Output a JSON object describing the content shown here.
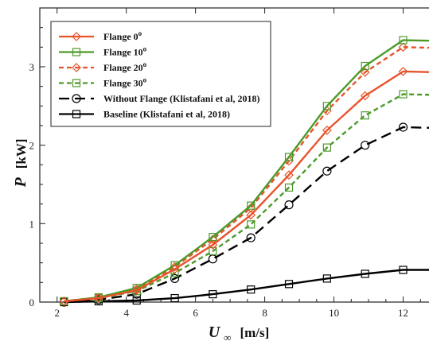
{
  "chart_data": {
    "type": "line",
    "xlim": [
      1.5,
      13
    ],
    "ylim": [
      0,
      3.75
    ],
    "x_ticks": [
      2,
      4,
      6,
      8,
      10,
      12
    ],
    "y_ticks": [
      0,
      1,
      2,
      3
    ],
    "ylabel_main": "P",
    "ylabel_unit": "[kW]",
    "xlabel_main": "U",
    "xlabel_sub": "∞",
    "xlabel_unit": "[m/s]",
    "grid": false,
    "legend_position": "top-left",
    "series": [
      {
        "name": "Flange 0",
        "name_sup": "o",
        "color": "#e8532b",
        "dash": "solid",
        "marker": "diamond",
        "x": [
          2.2,
          3.2,
          4.3,
          5.4,
          6.5,
          7.6,
          8.7,
          9.8,
          10.9,
          12.0,
          13.0
        ],
        "y": [
          0.01,
          0.05,
          0.15,
          0.42,
          0.73,
          1.11,
          1.62,
          2.19,
          2.63,
          2.94,
          2.93
        ]
      },
      {
        "name": "Flange 10",
        "name_sup": "o",
        "color": "#4d9a2a",
        "dash": "solid",
        "marker": "square",
        "x": [
          2.2,
          3.2,
          4.3,
          5.4,
          6.5,
          7.6,
          8.7,
          9.8,
          10.9,
          12.0,
          13.0
        ],
        "y": [
          0.01,
          0.06,
          0.18,
          0.47,
          0.83,
          1.23,
          1.85,
          2.5,
          3.01,
          3.34,
          3.33
        ]
      },
      {
        "name": "Flange 20",
        "name_sup": "o",
        "color": "#e8532b",
        "dash": "dashed",
        "marker": "diamond",
        "x": [
          2.2,
          3.2,
          4.3,
          5.4,
          6.5,
          7.6,
          8.7,
          9.8,
          10.9,
          12.0,
          13.0
        ],
        "y": [
          0.01,
          0.06,
          0.17,
          0.45,
          0.8,
          1.2,
          1.8,
          2.44,
          2.93,
          3.25,
          3.24
        ]
      },
      {
        "name": "Flange 30",
        "name_sup": "o",
        "color": "#4d9a2a",
        "dash": "dashed",
        "marker": "square",
        "x": [
          2.2,
          3.2,
          4.3,
          5.4,
          6.5,
          7.6,
          8.7,
          9.8,
          10.9,
          12.0,
          13.0
        ],
        "y": [
          0.01,
          0.05,
          0.14,
          0.37,
          0.65,
          0.99,
          1.46,
          1.97,
          2.38,
          2.65,
          2.64
        ]
      },
      {
        "name": "Without Flange (Klistafani et al, 2018)",
        "name_sup": "",
        "color": "#000000",
        "dash": "longdash",
        "marker": "circle",
        "x": [
          2.2,
          3.2,
          4.3,
          5.4,
          6.5,
          7.6,
          8.7,
          9.8,
          10.9,
          12.0,
          13.0
        ],
        "y": [
          0.0,
          0.03,
          0.1,
          0.3,
          0.55,
          0.82,
          1.24,
          1.67,
          2.0,
          2.23,
          2.22
        ]
      },
      {
        "name": "Baseline (Klistafani et al, 2018)",
        "name_sup": "",
        "color": "#000000",
        "dash": "solid",
        "marker": "square",
        "x": [
          2.2,
          3.2,
          4.3,
          5.4,
          6.5,
          7.6,
          8.7,
          9.8,
          10.9,
          12.0,
          13.0
        ],
        "y": [
          0.0,
          0.01,
          0.02,
          0.05,
          0.1,
          0.16,
          0.23,
          0.3,
          0.36,
          0.41,
          0.41
        ]
      }
    ]
  }
}
